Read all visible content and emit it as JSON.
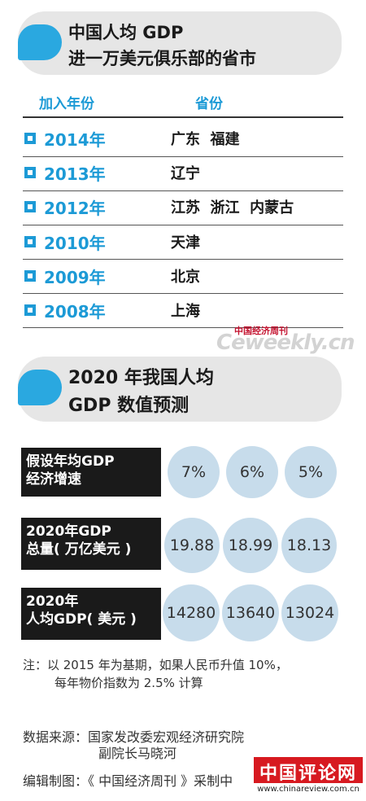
{
  "section1": {
    "title": "中国人均 GDP\n进一万美元俱乐部的省市",
    "col_year": "加入年份",
    "col_province": "省份",
    "rows": [
      {
        "year": "2014年",
        "provinces": "广东  福建"
      },
      {
        "year": "2013年",
        "provinces": "辽宁"
      },
      {
        "year": "2012年",
        "provinces": "江苏  浙江  内蒙古"
      },
      {
        "year": "2010年",
        "provinces": "天津"
      },
      {
        "year": "2009年",
        "provinces": "北京"
      },
      {
        "year": "2008年",
        "provinces": "上海"
      }
    ]
  },
  "watermark": {
    "cn": "中国经济周刊",
    "en": "Ceweekly.cn"
  },
  "section2": {
    "title": "2020 年我国人均\nGDP 数值预测",
    "rows": [
      {
        "label": "假设年均GDP\n经济增速",
        "values": [
          "7%",
          "6%",
          "5%"
        ]
      },
      {
        "label": "2020年GDP\n总量( 万亿美元 )",
        "values": [
          "19.88",
          "18.99",
          "18.13"
        ]
      },
      {
        "label": "2020年\n人均GDP( 美元 )",
        "values": [
          "14280",
          "13640",
          "13024"
        ]
      }
    ]
  },
  "note": {
    "line1": "注：以 2015 年为基期，如果人民币升值 10%，",
    "line2": "每年物价指数为 2.5% 计算"
  },
  "source": {
    "line1": "数据来源：国家发改委宏观经济研究院",
    "line2": "副院长马晓河"
  },
  "editor": "编辑制图：《 中国经济周刊 》采制中",
  "logo": {
    "cn": "中国评论网",
    "url": "www.chinareview.com.cn"
  },
  "colors": {
    "accent_blue": "#1c9ad6",
    "bubble_blue": "#2aa8e0",
    "circle_fill": "#c7dceb",
    "logo_red": "#d71920"
  }
}
